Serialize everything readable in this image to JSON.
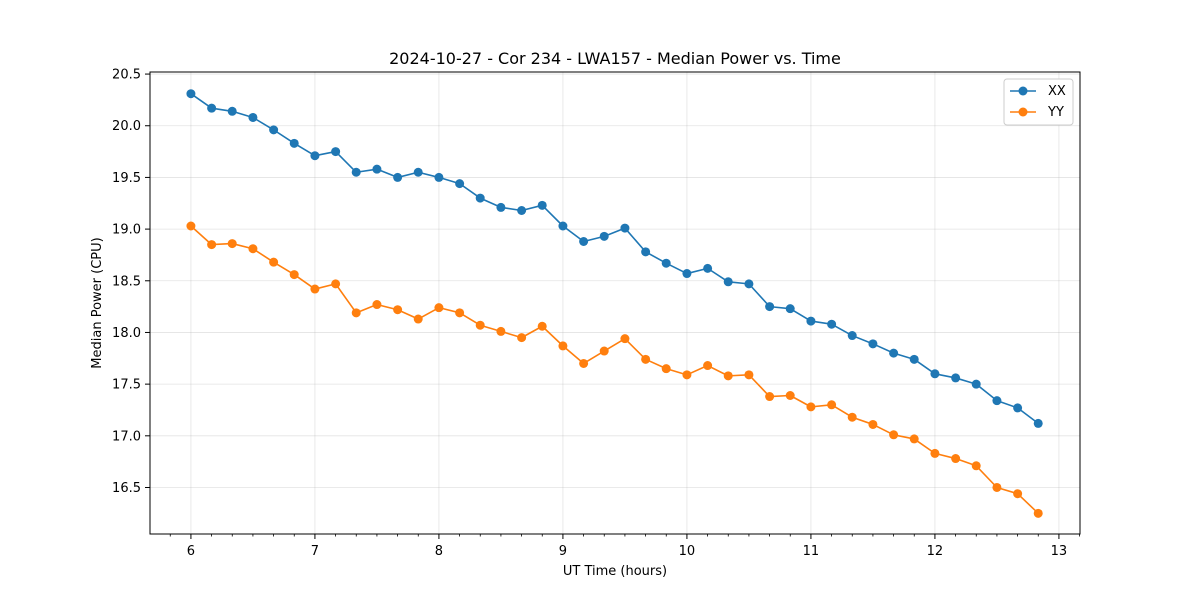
{
  "chart_data": {
    "type": "line",
    "title": "2024-10-27 - Cor 234 - LWA157 - Median Power vs. Time",
    "xlabel": "UT Time (hours)",
    "ylabel": "Median Power (CPU)",
    "xlim": [
      5.67,
      13.17
    ],
    "ylim": [
      16.05,
      20.52
    ],
    "xticks": [
      6,
      7,
      8,
      9,
      10,
      11,
      12,
      13
    ],
    "xtick_labels": [
      "6",
      "7",
      "8",
      "9",
      "10",
      "11",
      "12",
      "13"
    ],
    "yticks": [
      16.5,
      17.0,
      17.5,
      18.0,
      18.5,
      19.0,
      19.5,
      20.0,
      20.5
    ],
    "ytick_labels": [
      "16.5",
      "17.0",
      "17.5",
      "18.0",
      "18.5",
      "19.0",
      "19.5",
      "20.0",
      "20.5"
    ],
    "grid": true,
    "legend_position": "top-right",
    "x": [
      6.0,
      6.167,
      6.333,
      6.5,
      6.667,
      6.833,
      7.0,
      7.167,
      7.333,
      7.5,
      7.667,
      7.833,
      8.0,
      8.167,
      8.333,
      8.5,
      8.667,
      8.833,
      9.0,
      9.167,
      9.333,
      9.5,
      9.667,
      9.833,
      10.0,
      10.167,
      10.333,
      10.5,
      10.667,
      10.833,
      11.0,
      11.167,
      11.333,
      11.5,
      11.667,
      11.833,
      12.0,
      12.167,
      12.333,
      12.5,
      12.667,
      12.833
    ],
    "series": [
      {
        "name": "XX",
        "color": "#1f77b4",
        "values": [
          20.31,
          20.17,
          20.14,
          20.08,
          19.96,
          19.83,
          19.71,
          19.75,
          19.55,
          19.58,
          19.5,
          19.55,
          19.5,
          19.44,
          19.3,
          19.21,
          19.18,
          19.23,
          19.03,
          18.88,
          18.93,
          19.01,
          18.78,
          18.67,
          18.57,
          18.62,
          18.49,
          18.47,
          18.25,
          18.23,
          18.11,
          18.08,
          17.97,
          17.89,
          17.8,
          17.74,
          17.6,
          17.56,
          17.5,
          17.34,
          17.27,
          17.12
        ]
      },
      {
        "name": "YY",
        "color": "#ff7f0e",
        "values": [
          19.03,
          18.85,
          18.86,
          18.81,
          18.68,
          18.56,
          18.42,
          18.47,
          18.19,
          18.27,
          18.22,
          18.13,
          18.24,
          18.19,
          18.07,
          18.01,
          17.95,
          18.06,
          17.87,
          17.7,
          17.82,
          17.94,
          17.74,
          17.65,
          17.59,
          17.68,
          17.58,
          17.59,
          17.38,
          17.39,
          17.28,
          17.3,
          17.18,
          17.11,
          17.01,
          16.97,
          16.83,
          16.78,
          16.71,
          16.5,
          16.44,
          16.25
        ]
      }
    ]
  }
}
